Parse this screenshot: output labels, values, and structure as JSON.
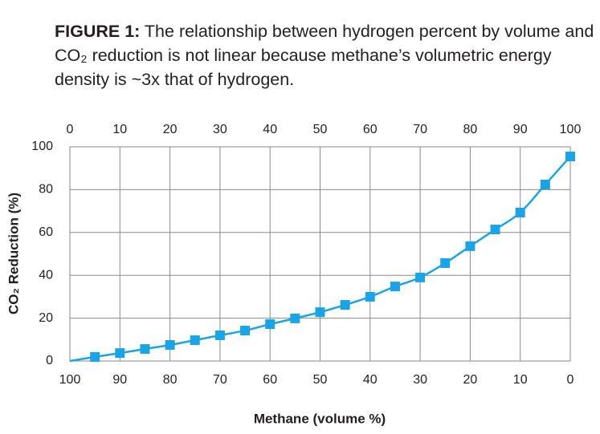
{
  "chart_data": {
    "type": "line",
    "title_label": "FIGURE 1:",
    "title": "The relationship between hydrogen percent by volume and CO₂ reduction is not linear because methane’s volumetric energy density is ~3x that of hydrogen.",
    "ylabel": "CO₂ Reduction (%)",
    "x2label": "Methane (volume %)",
    "x": [
      0,
      5,
      10,
      15,
      20,
      25,
      30,
      35,
      40,
      45,
      50,
      55,
      60,
      65,
      70,
      75,
      80,
      85,
      90,
      95,
      100
    ],
    "series": [
      {
        "color": "#1ba3e6",
        "values": [
          0,
          1.9,
          3.7,
          5.6,
          7.5,
          9.7,
          12.0,
          14.2,
          17.2,
          19.9,
          22.8,
          26.2,
          30.0,
          34.8,
          39.0,
          45.7,
          53.6,
          61.4,
          69.3,
          82.4,
          95.5
        ]
      }
    ],
    "xlim": [
      0,
      100
    ],
    "xticks": [
      0,
      10,
      20,
      30,
      40,
      50,
      60,
      70,
      80,
      90,
      100
    ],
    "x2lim": [
      100,
      0
    ],
    "x2ticks": [
      100,
      90,
      80,
      70,
      60,
      50,
      40,
      30,
      20,
      10,
      0
    ],
    "ylim": [
      0,
      100
    ],
    "yticks": [
      0,
      20,
      40,
      60,
      80,
      100
    ],
    "grid": true
  }
}
